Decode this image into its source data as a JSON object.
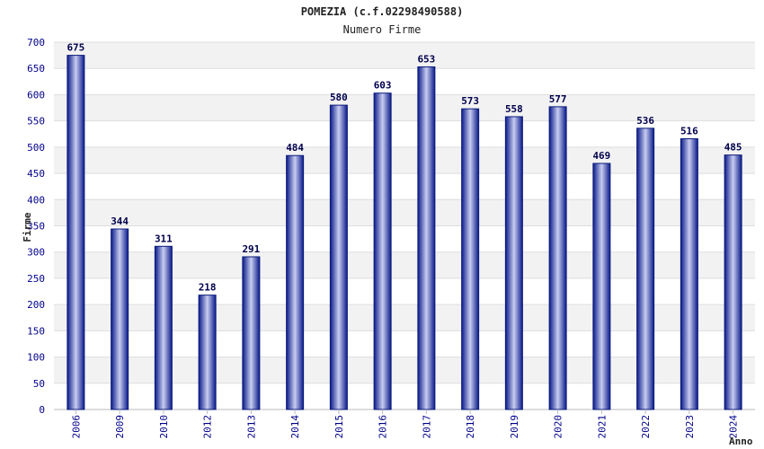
{
  "chart_data": {
    "type": "bar",
    "title": "POMEZIA (c.f.02298490588)",
    "subtitle": "Numero Firme",
    "xlabel": "Anno",
    "ylabel": "Firme",
    "ylim": [
      0,
      700
    ],
    "ytick_step": 50,
    "yticks": [
      "0",
      "50",
      "100",
      "150",
      "200",
      "250",
      "300",
      "350",
      "400",
      "450",
      "500",
      "550",
      "600",
      "650",
      "700"
    ],
    "grid": true,
    "categories": [
      "2006",
      "2009",
      "2010",
      "2012",
      "2013",
      "2014",
      "2015",
      "2016",
      "2017",
      "2018",
      "2019",
      "2020",
      "2021",
      "2022",
      "2023",
      "2024"
    ],
    "values": [
      675,
      344,
      311,
      218,
      291,
      484,
      580,
      603,
      653,
      573,
      558,
      577,
      469,
      536,
      516,
      485
    ],
    "bar_color": "#1a2a9a",
    "bar_highlight": "#c8cdf0"
  }
}
